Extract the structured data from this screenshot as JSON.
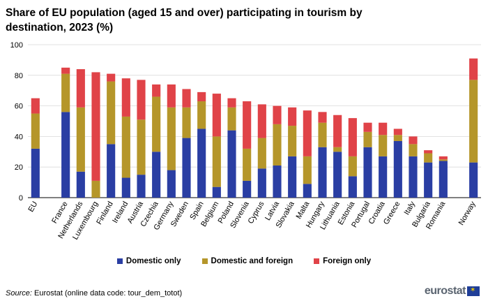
{
  "title": "Share of EU population (aged 15 and over) participating in tourism by destination, 2023 (%)",
  "source_label": "Source:",
  "source_text": "Eurostat (online data code: tour_dem_totot)",
  "logo_text": "eurostat",
  "chart_data": {
    "type": "bar",
    "stacked": true,
    "ylim": [
      0,
      100
    ],
    "yticks": [
      0,
      20,
      40,
      60,
      80,
      100
    ],
    "grid": true,
    "categories": [
      "EU",
      "France",
      "Netherlands",
      "Luxembourg",
      "Finland",
      "Ireland",
      "Austria",
      "Czechia",
      "Germany",
      "Sweden",
      "Spain",
      "Belgium",
      "Poland",
      "Slovenia",
      "Cyprus",
      "Latvia",
      "Slovakia",
      "Malta",
      "Hungary",
      "Lithuania",
      "Estonia",
      "Portugal",
      "Croatia",
      "Greece",
      "Italy",
      "Bulgaria",
      "Romania",
      "Norway"
    ],
    "gap_after": [
      "EU",
      "Romania"
    ],
    "series": [
      {
        "name": "Domestic only",
        "color": "#2a3ea3",
        "values": [
          32,
          56,
          17,
          0,
          35,
          13,
          15,
          30,
          18,
          39,
          45,
          7,
          44,
          11,
          19,
          21,
          27,
          9,
          33,
          30,
          14,
          33,
          27,
          37,
          27,
          23,
          24,
          23
        ]
      },
      {
        "name": "Domestic and foreign",
        "color": "#b5962a",
        "values": [
          23,
          25,
          42,
          11,
          41,
          40,
          36,
          36,
          41,
          20,
          18,
          33,
          15,
          21,
          20,
          27,
          20,
          18,
          16,
          3,
          13,
          10,
          14,
          4,
          8,
          6,
          1,
          54
        ]
      },
      {
        "name": "Foreign only",
        "color": "#e04348",
        "values": [
          10,
          4,
          25,
          71,
          5,
          25,
          26,
          8,
          15,
          12,
          6,
          28,
          6,
          31,
          22,
          12,
          12,
          30,
          7,
          21,
          25,
          6,
          8,
          4,
          5,
          2,
          2,
          14
        ]
      }
    ]
  }
}
